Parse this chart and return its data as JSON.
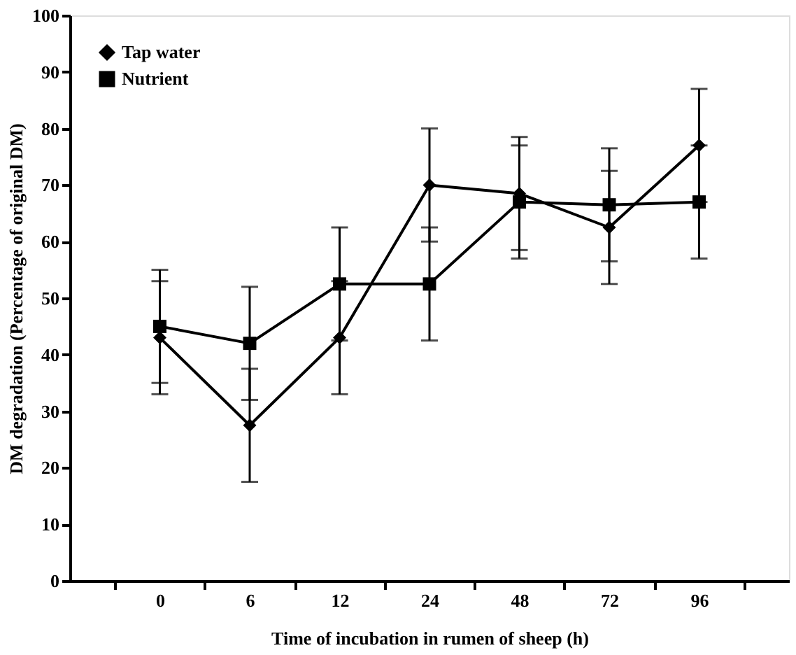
{
  "chart_data": {
    "type": "line",
    "xlabel": "Time of incubation in rumen of sheep (h)",
    "ylabel": "DM degradation (Percentage of original DM)",
    "categories": [
      "0",
      "6",
      "12",
      "24",
      "48",
      "72",
      "96"
    ],
    "series": [
      {
        "name": "Tap water",
        "color": "#000000",
        "marker": "diamond",
        "values": [
          43,
          27.5,
          43,
          70,
          68.5,
          62.5,
          77
        ],
        "errors": [
          10,
          10,
          10,
          10,
          10,
          10,
          10
        ]
      },
      {
        "name": "Nutrient",
        "color": "#000000",
        "marker": "square",
        "values": [
          45,
          42,
          52.5,
          52.5,
          67,
          66.5,
          67
        ],
        "errors": [
          10,
          10,
          10,
          10,
          10,
          10,
          10
        ]
      }
    ],
    "ylim": [
      0,
      100
    ],
    "yticks": [
      0,
      10,
      20,
      30,
      40,
      50,
      60,
      70,
      80,
      90,
      100
    ],
    "grid": false,
    "legend": "top left",
    "line_style": "solid"
  }
}
